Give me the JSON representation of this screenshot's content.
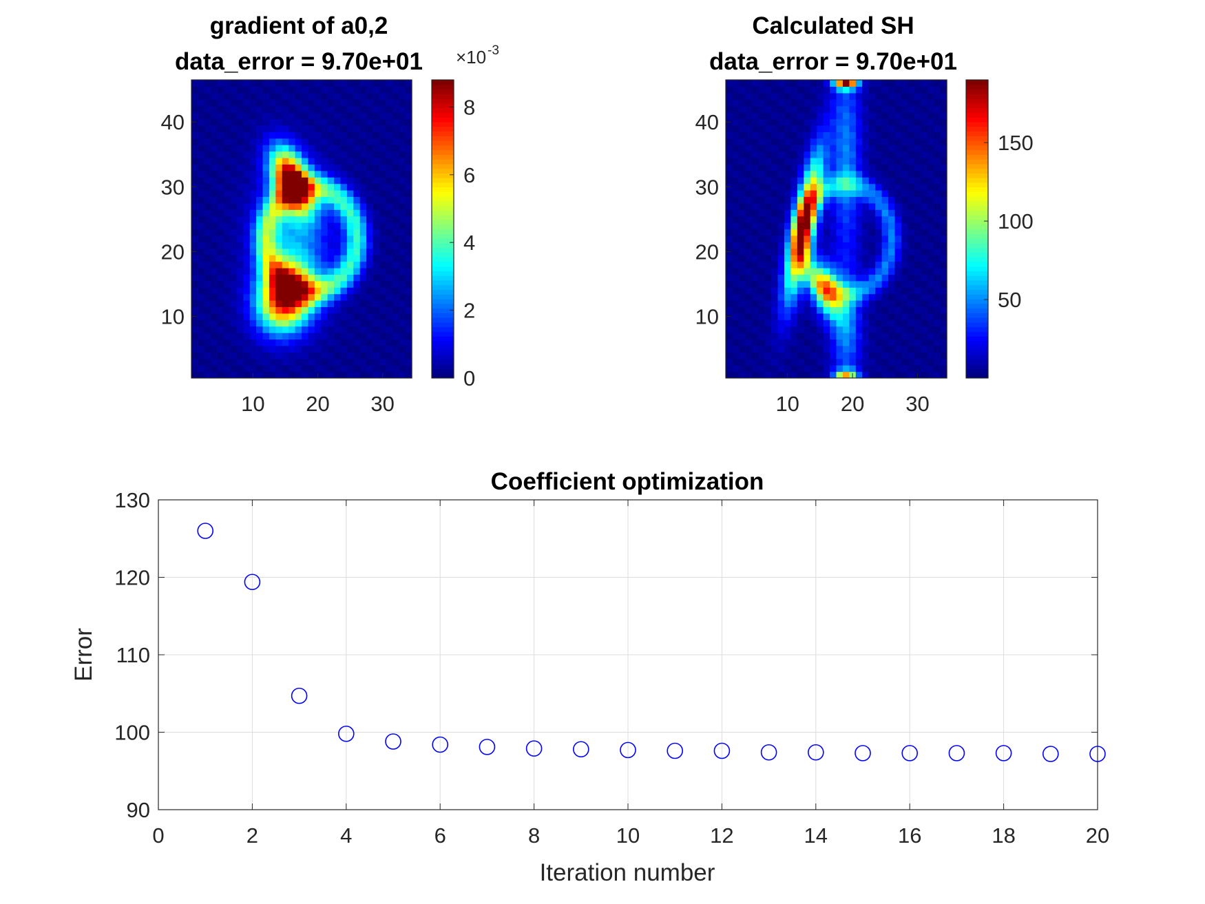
{
  "chart_data": [
    {
      "type": "heatmap",
      "title": [
        "gradient of a0,2",
        "data_error = 9.70e+01"
      ],
      "colormap": "jet",
      "x_ticks": [
        10,
        20,
        30
      ],
      "y_ticks": [
        10,
        20,
        30,
        40
      ],
      "xlim": [
        0.5,
        34.5
      ],
      "ylim": [
        0.5,
        46.5
      ],
      "grid_size": [
        34,
        46
      ],
      "colorbar": {
        "ticks": [
          "0",
          "2",
          "4",
          "6",
          "8"
        ],
        "range": [
          0,
          8.8
        ],
        "exponent_label": "×10",
        "exponent": "-3"
      },
      "blobs": [
        {
          "cx": 16,
          "cy": 31,
          "sx": 1.8,
          "sy": 3.5,
          "rot": 0.4,
          "amp": 8.8
        },
        {
          "cx": 15,
          "cy": 13,
          "sx": 2.8,
          "sy": 3.5,
          "rot": -0.3,
          "amp": 8.0
        },
        {
          "cx": 16,
          "cy": 22,
          "sx": 4.0,
          "sy": 7.0,
          "rot": 0,
          "amp": 2.2
        }
      ],
      "ring": {
        "cx": 19,
        "cy": 22,
        "rx": 7,
        "ry": 8,
        "width": 1.3,
        "amp": 3.5
      }
    },
    {
      "type": "heatmap",
      "title": [
        "Calculated SH",
        "data_error = 9.70e+01"
      ],
      "colormap": "jet",
      "x_ticks": [
        10,
        20,
        30
      ],
      "y_ticks": [
        10,
        20,
        30,
        40
      ],
      "xlim": [
        0.5,
        34.5
      ],
      "ylim": [
        0.5,
        46.5
      ],
      "grid_size": [
        34,
        46
      ],
      "colorbar": {
        "ticks": [
          "50",
          "100",
          "150"
        ],
        "range": [
          0,
          190
        ]
      },
      "blobs": [
        {
          "cx": 12.5,
          "cy": 24,
          "sx": 1.2,
          "sy": 7.5,
          "rot": -0.2,
          "amp": 165
        },
        {
          "cx": 16,
          "cy": 14,
          "sx": 1.5,
          "sy": 3,
          "rot": 0.3,
          "amp": 110
        },
        {
          "cx": 19,
          "cy": 35,
          "sx": 1.6,
          "sy": 11,
          "rot": 0,
          "amp": 45
        },
        {
          "cx": 19,
          "cy": 8,
          "sx": 1.6,
          "sy": 6,
          "rot": 0,
          "amp": 45
        },
        {
          "cx": 19,
          "cy": 46,
          "sx": 1.2,
          "sy": 0.6,
          "rot": 0,
          "amp": 160
        },
        {
          "cx": 19,
          "cy": 1,
          "sx": 1.2,
          "sy": 0.6,
          "rot": 0,
          "amp": 110
        }
      ],
      "ring": {
        "cx": 19,
        "cy": 22,
        "rx": 7,
        "ry": 8.5,
        "width": 1.0,
        "amp": 45
      }
    },
    {
      "type": "scatter",
      "title": "Coefficient optimization",
      "xlabel": "Iteration number",
      "ylabel": "Error",
      "xlim": [
        0,
        20
      ],
      "ylim": [
        90,
        130
      ],
      "grid": true,
      "marker": "circle",
      "color": "#0000ff",
      "x_ticks": [
        "0",
        "2",
        "4",
        "6",
        "8",
        "10",
        "12",
        "14",
        "16",
        "18",
        "20"
      ],
      "y_ticks": [
        "90",
        "100",
        "110",
        "120",
        "130"
      ],
      "x": [
        1,
        2,
        3,
        4,
        5,
        6,
        7,
        8,
        9,
        10,
        11,
        12,
        13,
        14,
        15,
        16,
        17,
        18,
        19,
        20
      ],
      "y": [
        126.0,
        119.4,
        104.7,
        99.8,
        98.8,
        98.4,
        98.1,
        97.9,
        97.8,
        97.7,
        97.6,
        97.6,
        97.4,
        97.4,
        97.3,
        97.3,
        97.3,
        97.3,
        97.2,
        97.2
      ]
    }
  ]
}
